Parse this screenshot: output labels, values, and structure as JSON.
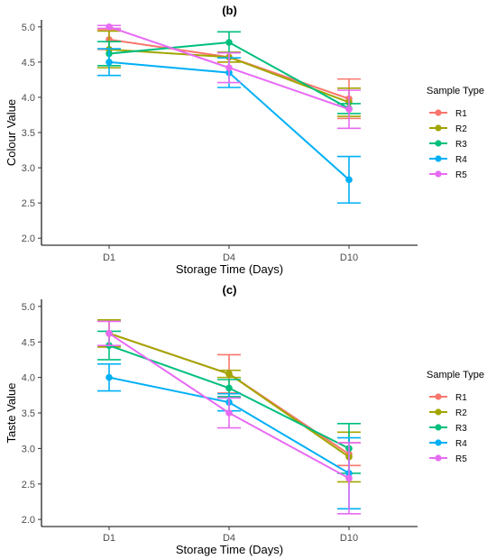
{
  "chart_data": [
    {
      "type": "line",
      "title": "(b)",
      "xlabel": "Storage Time (Days)",
      "ylabel": "Colour Value",
      "categories": [
        "D1",
        "D4",
        "D10"
      ],
      "ylim": [
        1.9,
        5.1
      ],
      "yticks": [
        "2.0",
        "2.5",
        "3.0",
        "3.5",
        "4.0",
        "4.5",
        "5.0"
      ],
      "grid": false,
      "legend_title": "Sample Type",
      "legend_position": "right",
      "series": [
        {
          "name": "R1",
          "color": "#F8766D",
          "values": [
            4.82,
            4.57,
            3.98
          ],
          "errors": [
            0.14,
            0.07,
            0.28
          ]
        },
        {
          "name": "R2",
          "color": "#A3A500",
          "values": [
            4.68,
            4.57,
            3.93
          ],
          "errors": [
            0.26,
            0.07,
            0.2
          ]
        },
        {
          "name": "R3",
          "color": "#00BF7D",
          "values": [
            4.62,
            4.78,
            3.84
          ],
          "errors": [
            0.17,
            0.15,
            0.07
          ]
        },
        {
          "name": "R4",
          "color": "#00B0F6",
          "values": [
            4.5,
            4.35,
            2.83
          ],
          "errors": [
            0.19,
            0.21,
            0.33
          ]
        },
        {
          "name": "R5",
          "color": "#E76BF3",
          "values": [
            5.0,
            4.42,
            3.83
          ],
          "errors": [
            0.02,
            0.21,
            0.27
          ]
        }
      ]
    },
    {
      "type": "line",
      "title": "(c)",
      "xlabel": "Storage Time (Days)",
      "ylabel": "Taste Value",
      "categories": [
        "D1",
        "D4",
        "D10"
      ],
      "ylim": [
        1.9,
        5.1
      ],
      "yticks": [
        "2.0",
        "2.5",
        "3.0",
        "3.5",
        "4.0",
        "4.5",
        "5.0"
      ],
      "grid": false,
      "legend_title": "Sample Type",
      "legend_position": "right",
      "series": [
        {
          "name": "R1",
          "color": "#F8766D",
          "values": [
            4.62,
            4.05,
            2.92
          ],
          "errors": [
            0.19,
            0.27,
            0.16
          ]
        },
        {
          "name": "R2",
          "color": "#A3A500",
          "values": [
            4.62,
            4.05,
            2.88
          ],
          "errors": [
            0.19,
            0.05,
            0.35
          ]
        },
        {
          "name": "R3",
          "color": "#00BF7D",
          "values": [
            4.45,
            3.85,
            3.0
          ],
          "errors": [
            0.2,
            0.12,
            0.35
          ]
        },
        {
          "name": "R4",
          "color": "#00B0F6",
          "values": [
            4.0,
            3.65,
            2.65
          ],
          "errors": [
            0.19,
            0.12,
            0.5
          ]
        },
        {
          "name": "R5",
          "color": "#E76BF3",
          "values": [
            4.62,
            3.5,
            2.58
          ],
          "errors": [
            0.17,
            0.21,
            0.5
          ]
        }
      ]
    }
  ]
}
